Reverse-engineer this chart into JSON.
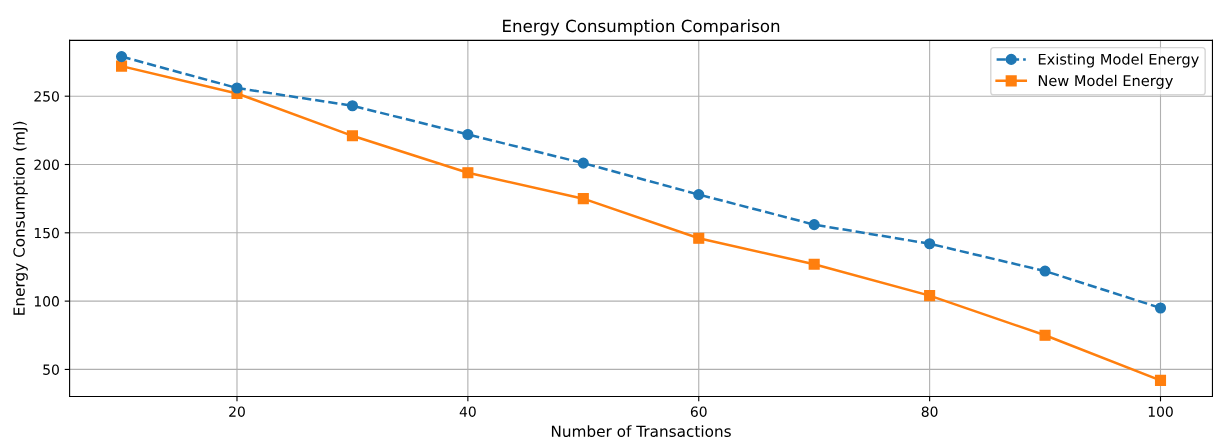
{
  "chart_data": {
    "type": "line",
    "title": "Energy Consumption Comparison",
    "xlabel": "Number of Transactions",
    "ylabel": "Energy Consumption (mJ)",
    "x": [
      10,
      20,
      30,
      40,
      50,
      60,
      70,
      80,
      90,
      100
    ],
    "series": [
      {
        "name": "Existing Model Energy",
        "color": "#1f77b4",
        "marker": "circle",
        "line_style": "dashed",
        "values": [
          279,
          256,
          243,
          222,
          201,
          178,
          156,
          142,
          122,
          95
        ]
      },
      {
        "name": "New Model Energy",
        "color": "#ff7f0e",
        "marker": "square",
        "line_style": "solid",
        "values": [
          272,
          252,
          221,
          194,
          175,
          146,
          127,
          104,
          75,
          42
        ]
      }
    ],
    "xlim": [
      5.5,
      104.5
    ],
    "xticks": [
      20,
      40,
      60,
      80,
      100
    ],
    "ylim": [
      30.2,
      290.9
    ],
    "yticks": [
      50,
      100,
      150,
      200,
      250
    ],
    "grid": true,
    "legend": "top right"
  }
}
